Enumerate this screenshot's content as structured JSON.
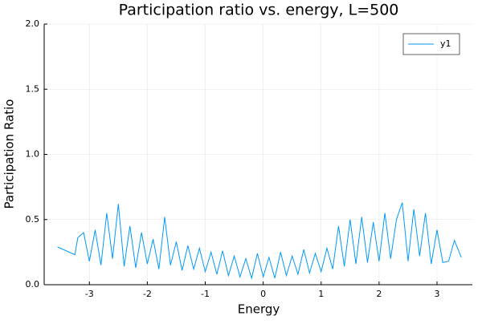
{
  "chart_data": {
    "type": "line",
    "title": "Participation ratio vs. energy, L=500",
    "x_label": "Energy",
    "y_label": "Participation Ratio",
    "legend": "top-right",
    "grid": true,
    "xlim": [
      -3.78,
      3.61
    ],
    "ylim": [
      0,
      2
    ],
    "xticks": [
      -3,
      -2,
      -1,
      0,
      1,
      2,
      3
    ],
    "yticks": [
      {
        "value": 0,
        "label": "0.0"
      },
      {
        "value": 0.5,
        "label": "0.5"
      },
      {
        "value": 1,
        "label": "1.0"
      },
      {
        "value": 1.5,
        "label": "1.5"
      },
      {
        "value": 2,
        "label": "2.0"
      }
    ],
    "x": [
      -3.55,
      -3.25,
      -3.2,
      -3.1,
      -3.0,
      -2.9,
      -2.8,
      -2.7,
      -2.6,
      -2.5,
      -2.4,
      -2.3,
      -2.2,
      -2.1,
      -2.0,
      -1.9,
      -1.8,
      -1.7,
      -1.6,
      -1.5,
      -1.4,
      -1.3,
      -1.2,
      -1.1,
      -1.0,
      -0.9,
      -0.8,
      -0.7,
      -0.6,
      -0.5,
      -0.4,
      -0.3,
      -0.2,
      -0.1,
      0.0,
      0.1,
      0.2,
      0.3,
      0.4,
      0.5,
      0.6,
      0.7,
      0.8,
      0.9,
      1.0,
      1.1,
      1.2,
      1.3,
      1.4,
      1.5,
      1.6,
      1.7,
      1.8,
      1.9,
      2.0,
      2.1,
      2.2,
      2.3,
      2.4,
      2.5,
      2.6,
      2.7,
      2.8,
      2.9,
      3.0,
      3.1,
      3.2,
      3.3,
      3.42
    ],
    "series": [
      {
        "name": "y1",
        "color": "#009af9",
        "values": [
          0.29,
          0.23,
          0.36,
          0.4,
          0.18,
          0.42,
          0.15,
          0.55,
          0.2,
          0.62,
          0.14,
          0.45,
          0.13,
          0.4,
          0.16,
          0.35,
          0.12,
          0.52,
          0.15,
          0.33,
          0.11,
          0.3,
          0.12,
          0.28,
          0.1,
          0.25,
          0.08,
          0.26,
          0.07,
          0.22,
          0.06,
          0.2,
          0.05,
          0.24,
          0.06,
          0.21,
          0.05,
          0.25,
          0.07,
          0.22,
          0.08,
          0.27,
          0.09,
          0.24,
          0.1,
          0.28,
          0.12,
          0.45,
          0.14,
          0.5,
          0.16,
          0.52,
          0.17,
          0.48,
          0.18,
          0.55,
          0.2,
          0.5,
          0.63,
          0.18,
          0.58,
          0.22,
          0.55,
          0.16,
          0.42,
          0.17,
          0.18,
          0.34,
          0.21
        ]
      }
    ]
  }
}
